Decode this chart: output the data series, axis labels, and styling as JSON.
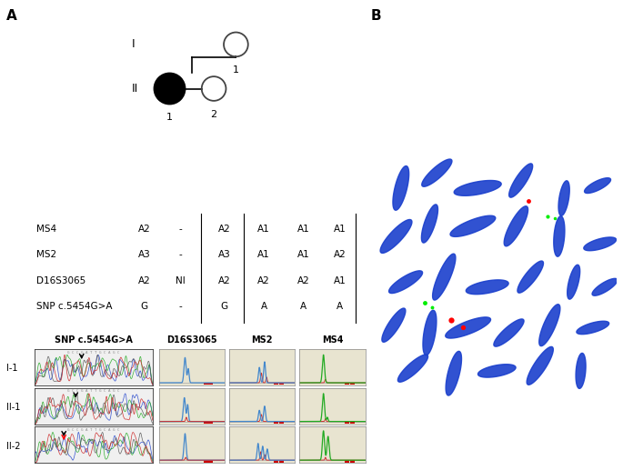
{
  "panel_A_label": "A",
  "panel_B_label": "B",
  "pedigree": {
    "gen_I_label": "I",
    "gen_II_label": "II",
    "circle_I_1_label": "1",
    "circle_II_1_label": "1",
    "circle_II_2_label": "2"
  },
  "table": {
    "markers": [
      "MS4",
      "MS2",
      "D16S3065",
      "SNP c.5454G>A"
    ],
    "col_data": [
      [
        "A2",
        "A3",
        "A2",
        "G"
      ],
      [
        "-",
        "-",
        "NI",
        "-"
      ],
      [
        "A2",
        "A3",
        "A2",
        "G"
      ],
      [
        "A1",
        "A1",
        "A2",
        "A"
      ],
      [
        "A1",
        "A1",
        "A2",
        "A"
      ],
      [
        "A1",
        "A2",
        "A1",
        "A"
      ]
    ]
  },
  "chromatogram_labels": {
    "snp": "SNP c.5454G>A",
    "d16": "D16S3065",
    "ms2": "MS2",
    "ms4": "MS4"
  },
  "row_labels": [
    "I-1",
    "II-1",
    "II-2"
  ],
  "background_color": "#ffffff",
  "text_color": "#000000",
  "snp_bg": "#f0f0f0",
  "fragment_bg": "#e8e4d0",
  "red_box_color": "#cc0000",
  "chr_blue": "#1a3fcc",
  "fish_bg": "#000000"
}
